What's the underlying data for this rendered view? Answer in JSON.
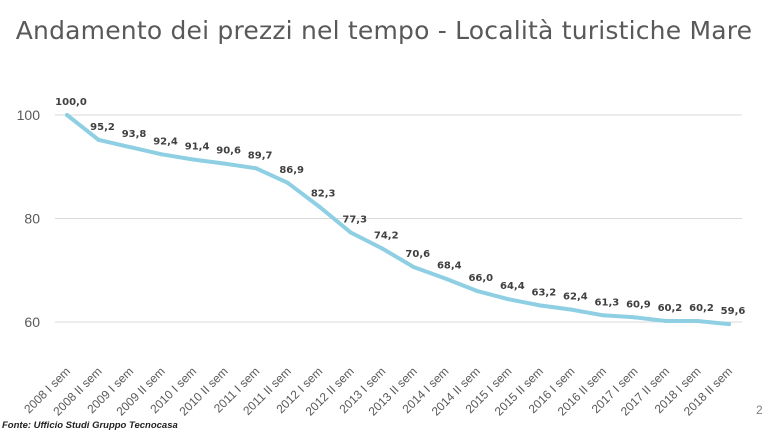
{
  "chart_data": {
    "type": "line",
    "title": "Andamento dei prezzi nel tempo - Località turistiche Mare",
    "xlabel": "",
    "ylabel": "",
    "categories": [
      "2008 I sem",
      "2008 II sem",
      "2009 I sem",
      "2009 II sem",
      "2010 I sem",
      "2010 II sem",
      "2011 I sem",
      "2011 II sem",
      "2012 I sem",
      "2012 II sem",
      "2013 I sem",
      "2013 II sem",
      "2014 I sem",
      "2014 II sem",
      "2015 I sem",
      "2015 II sem",
      "2016 I sem",
      "2016 II sem",
      "2017 I sem",
      "2017 II sem",
      "2018 I sem",
      "2018 II sem"
    ],
    "series": [
      {
        "values": [
          100.0,
          95.2,
          93.8,
          92.4,
          91.4,
          90.6,
          89.7,
          86.9,
          82.3,
          77.3,
          74.2,
          70.6,
          68.4,
          66.0,
          64.4,
          63.2,
          62.4,
          61.3,
          60.9,
          60.2,
          60.2,
          59.6
        ],
        "data_labels": [
          "100,0",
          "95,2",
          "93,8",
          "92,4",
          "91,4",
          "90,6",
          "89,7",
          "86,9",
          "82,3",
          "77,3",
          "74,2",
          "70,6",
          "68,4",
          "66,0",
          "64,4",
          "63,2",
          "62,4",
          "61,3",
          "60,9",
          "60,2",
          "60,2",
          "59,6"
        ]
      }
    ],
    "ylim": [
      60,
      100
    ],
    "yticks": [
      60,
      80,
      100
    ],
    "ytick_labels": [
      "60",
      "80",
      "100"
    ],
    "grid": true,
    "legend": "none",
    "colors": {
      "line": "#8fcfe3",
      "grid": "#d9d9d9",
      "tick_text": "#595959",
      "data_label": "#404040"
    }
  },
  "footer": {
    "source": "Fonte: Ufficio Studi Gruppo Tecnocasa",
    "corner_mark": "2"
  }
}
